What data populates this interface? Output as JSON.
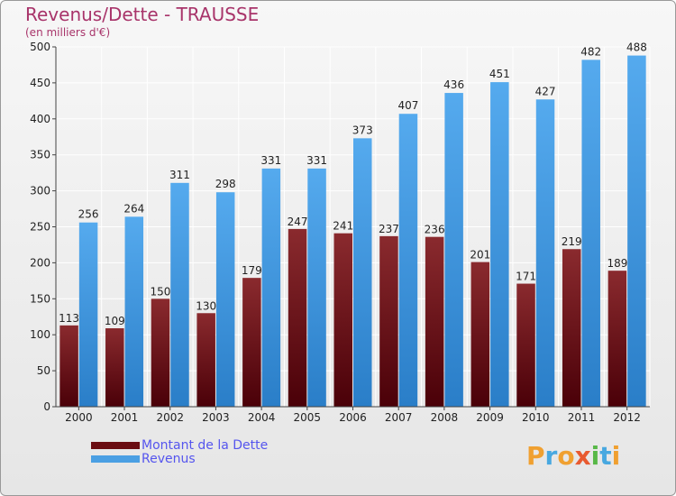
{
  "header": {
    "title": "Revenus/Dette - TRAUSSE",
    "subtitle": "(en milliers d'€)"
  },
  "colors": {
    "debt": "#7b1a1f",
    "debt_dark": "#4a0008",
    "revenue": "#4a9fe3",
    "revenue_dark": "#2a7ec8",
    "title": "#a8346a",
    "legend_text": "#5555ee"
  },
  "legend": {
    "items": [
      {
        "label": "Montant de la Dette",
        "color": "#6b0d12"
      },
      {
        "label": "Revenus",
        "color": "#4a9fe3"
      }
    ]
  },
  "logo": {
    "letters": [
      {
        "char": "P",
        "color": "#f0a030"
      },
      {
        "char": "r",
        "color": "#48a8e0"
      },
      {
        "char": "o",
        "color": "#f0a030"
      },
      {
        "char": "x",
        "color": "#e85a30"
      },
      {
        "char": "i",
        "color": "#58b848"
      },
      {
        "char": "t",
        "color": "#48a8e0"
      },
      {
        "char": "i",
        "color": "#f0a030"
      }
    ]
  },
  "chart_data": {
    "type": "bar",
    "title": "Revenus/Dette - TRAUSSE",
    "subtitle": "(en milliers d'€)",
    "xlabel": "",
    "ylabel": "",
    "ylim": [
      0,
      500
    ],
    "yticks": [
      0,
      50,
      100,
      150,
      200,
      250,
      300,
      350,
      400,
      450,
      500
    ],
    "grid": true,
    "legend_position": "bottom-left",
    "categories": [
      "2000",
      "2001",
      "2002",
      "2003",
      "2004",
      "2005",
      "2006",
      "2007",
      "2008",
      "2009",
      "2010",
      "2011",
      "2012"
    ],
    "series": [
      {
        "name": "Montant de la Dette",
        "values": [
          113,
          109,
          150,
          130,
          179,
          247,
          241,
          237,
          236,
          201,
          171,
          219,
          189
        ]
      },
      {
        "name": "Revenus",
        "values": [
          256,
          264,
          311,
          298,
          331,
          331,
          373,
          407,
          436,
          451,
          427,
          482,
          488
        ]
      }
    ]
  }
}
